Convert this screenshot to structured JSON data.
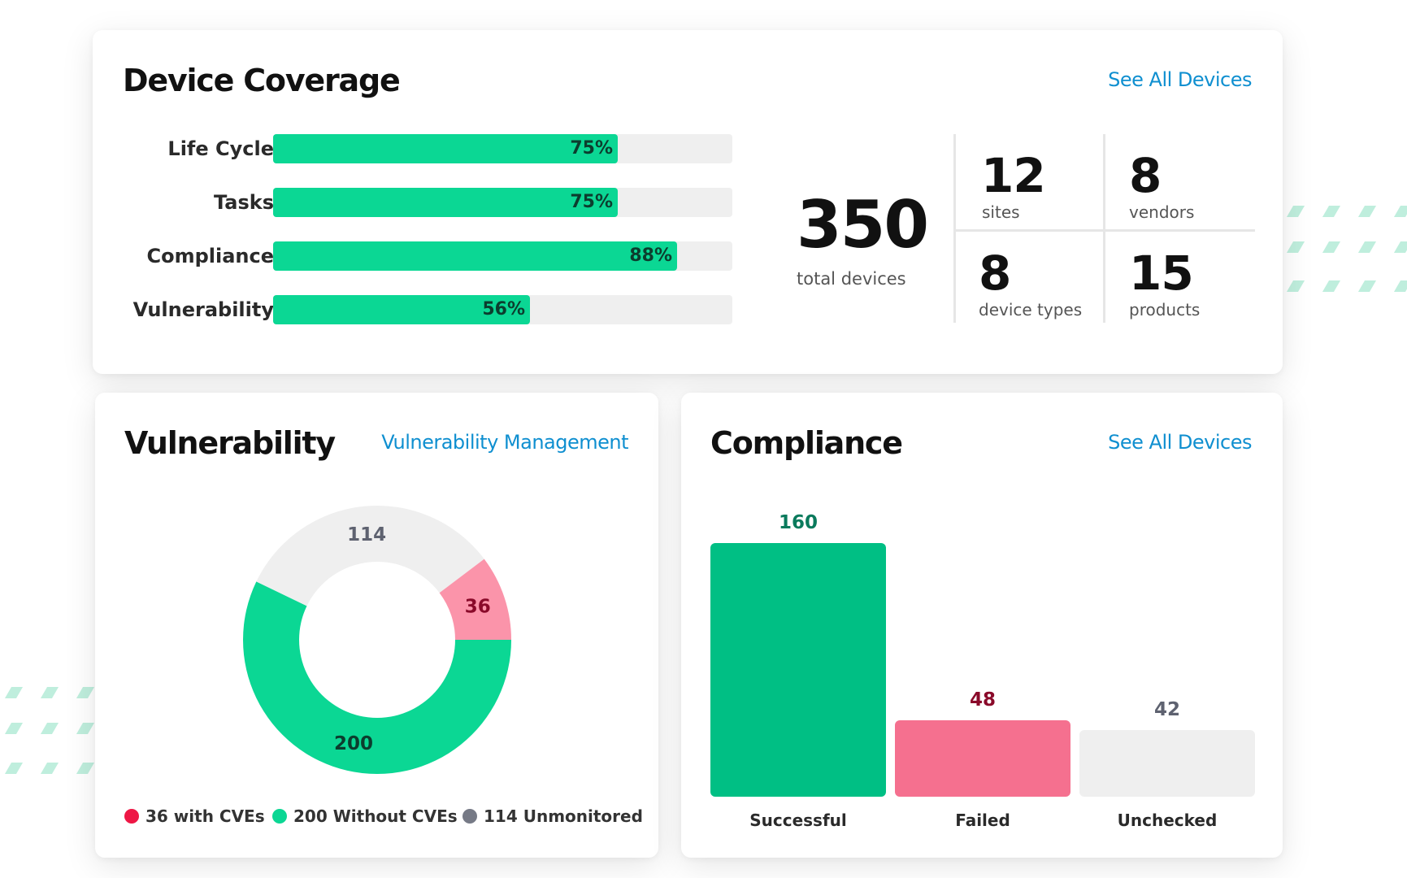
{
  "colors": {
    "accent_green": "#0bd794",
    "dark_green": "#00bf84",
    "pink": "#f5708f",
    "light_pink": "#fb94aa",
    "gray": "#efefef",
    "link_blue": "#0f8fd0",
    "cve_red": "#ee1745",
    "unmonitored_gray": "#767a86"
  },
  "coverage": {
    "title": "Device Coverage",
    "link": "See All Devices",
    "bars": [
      {
        "label": "Life Cycle",
        "value": 75,
        "value_label": "75%"
      },
      {
        "label": "Tasks",
        "value": 75,
        "value_label": "75%"
      },
      {
        "label": "Compliance",
        "value": 88,
        "value_label": "88%"
      },
      {
        "label": "Vulnerability",
        "value": 56,
        "value_label": "56%"
      }
    ],
    "total": {
      "value": "350",
      "label": "total devices"
    },
    "stats": [
      {
        "value": "12",
        "label": "sites"
      },
      {
        "value": "8",
        "label": "vendors"
      },
      {
        "value": "8",
        "label": "device types"
      },
      {
        "value": "15",
        "label": "products"
      }
    ]
  },
  "vulnerability": {
    "title": "Vulnerability",
    "link": "Vulnerability Management",
    "legend": [
      {
        "label": "36 with CVEs",
        "color": "#ee1745"
      },
      {
        "label": "200 Without CVEs",
        "color": "#0bd794"
      },
      {
        "label": "114 Unmonitored",
        "color": "#767a86"
      }
    ]
  },
  "compliance": {
    "title": "Compliance",
    "link": "See All Devices"
  },
  "chart_data": [
    {
      "type": "pie",
      "categories": [
        "with CVEs",
        "Without CVEs",
        "Unmonitored"
      ],
      "values": [
        36,
        200,
        114
      ],
      "value_labels": [
        "36",
        "200",
        "114"
      ],
      "colors": [
        "#fb94aa",
        "#0bd794",
        "#efefef"
      ],
      "label_colors": [
        "#8a0a2a",
        "#0c3d2e",
        "#5e6270"
      ],
      "donut": true
    },
    {
      "type": "bar",
      "categories": [
        "Successful",
        "Failed",
        "Unchecked"
      ],
      "values": [
        160,
        48,
        42
      ],
      "value_labels": [
        "160",
        "48",
        "42"
      ],
      "colors": [
        "#00bf84",
        "#f5708f",
        "#efefef"
      ],
      "label_colors": [
        "#0a7a5c",
        "#8a0a2a",
        "#5e6270"
      ],
      "ylim": [
        0,
        160
      ]
    }
  ]
}
